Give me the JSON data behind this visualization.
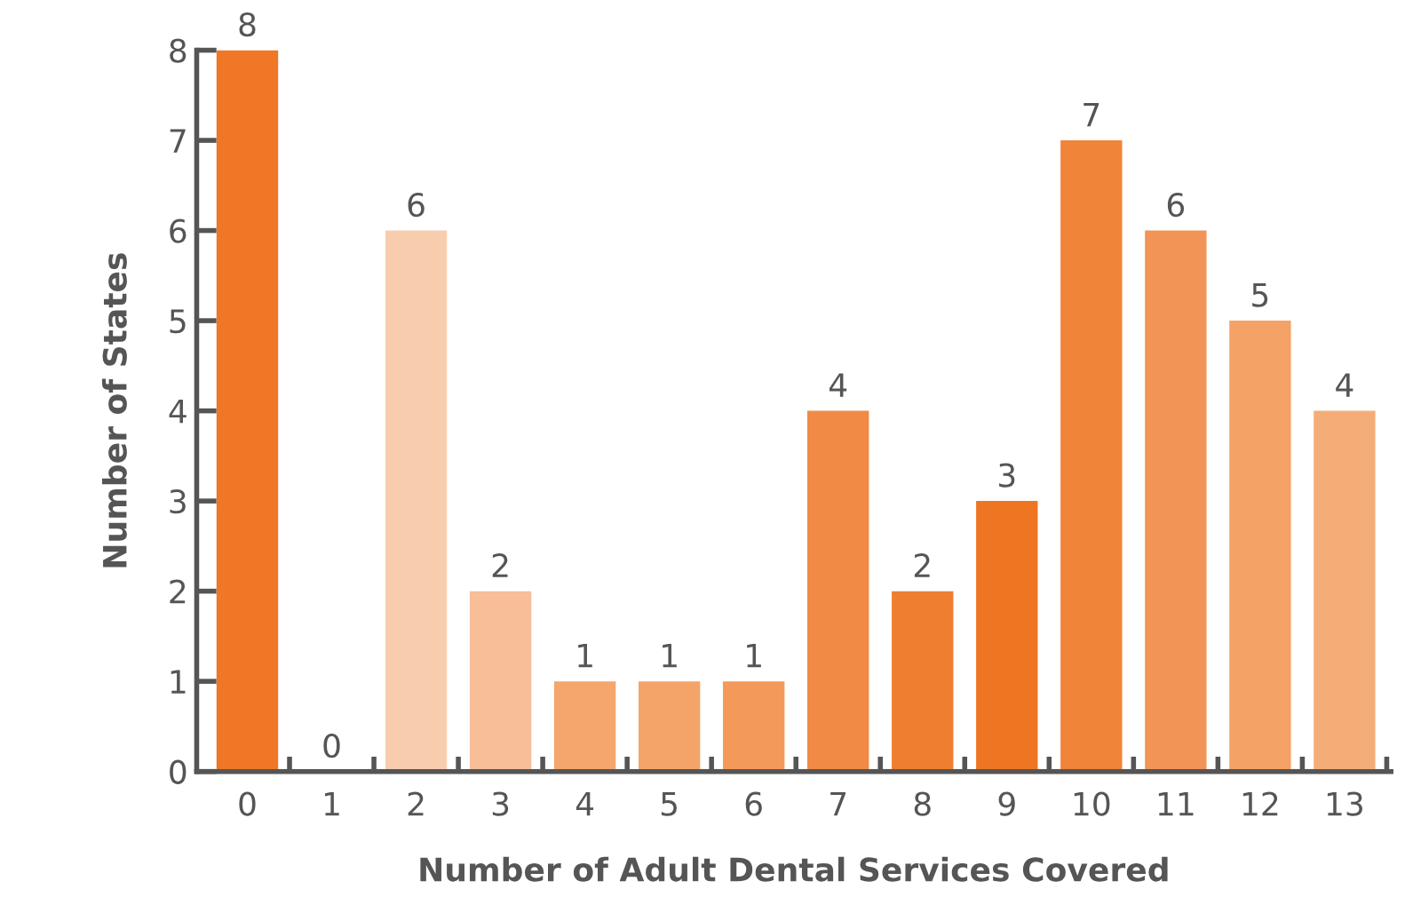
{
  "chart_data": {
    "type": "bar",
    "xlabel": "Number of Adult Dental Services Covered",
    "ylabel": "Number of States",
    "categories": [
      "0",
      "1",
      "2",
      "3",
      "4",
      "5",
      "6",
      "7",
      "8",
      "9",
      "10",
      "11",
      "12",
      "13"
    ],
    "values": [
      8,
      0,
      6,
      2,
      1,
      1,
      1,
      4,
      2,
      3,
      7,
      6,
      5,
      4
    ],
    "colors": [
      "#ef7726",
      "#ef7726",
      "#f8cdae",
      "#f7be98",
      "#f4a66c",
      "#f4a468",
      "#f39a5a",
      "#f18a44",
      "#f07e30",
      "#ee7522",
      "#f0853a",
      "#f29455",
      "#f4a266",
      "#f5ad78"
    ],
    "ylim": [
      0,
      8
    ],
    "yticks": [
      0,
      1,
      2,
      3,
      4,
      5,
      6,
      7,
      8
    ],
    "grid": false,
    "data_labels": true
  }
}
